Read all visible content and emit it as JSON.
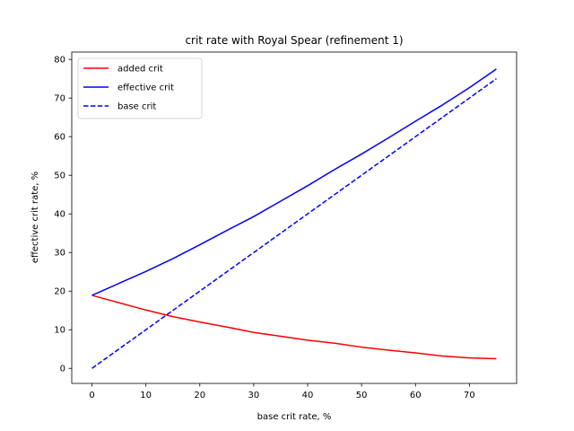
{
  "chart_data": {
    "type": "line",
    "title": "crit rate with Royal Spear (refinement 1)",
    "xlabel": "base crit rate, %",
    "ylabel": "effective crit rate, %",
    "xlim": [
      -3.75,
      78.75
    ],
    "ylim": [
      -3.9,
      81.9
    ],
    "xticks": [
      0,
      10,
      20,
      30,
      40,
      50,
      60,
      70
    ],
    "yticks": [
      0,
      10,
      20,
      30,
      40,
      50,
      60,
      70,
      80
    ],
    "grid": false,
    "legend_position": "top-left",
    "x": [
      0,
      5,
      10,
      15,
      20,
      25,
      30,
      35,
      40,
      45,
      50,
      55,
      60,
      65,
      70,
      75
    ],
    "series": [
      {
        "name": "added crit",
        "color": "#ff0000",
        "style": "solid",
        "values": [
          18.9,
          17.0,
          15.1,
          13.4,
          12.0,
          10.7,
          9.3,
          8.3,
          7.3,
          6.5,
          5.5,
          4.7,
          4.0,
          3.2,
          2.7,
          2.5
        ]
      },
      {
        "name": "effective crit",
        "color": "#0000ff",
        "style": "solid",
        "values": [
          18.9,
          22.0,
          25.1,
          28.4,
          32.0,
          35.7,
          39.3,
          43.3,
          47.3,
          51.5,
          55.5,
          59.7,
          64.0,
          68.2,
          72.7,
          77.5
        ]
      },
      {
        "name": "base crit",
        "color": "#0000ff",
        "style": "dashed",
        "values": [
          0,
          5,
          10,
          15,
          20,
          25,
          30,
          35,
          40,
          45,
          50,
          55,
          60,
          65,
          70,
          75
        ]
      }
    ]
  }
}
